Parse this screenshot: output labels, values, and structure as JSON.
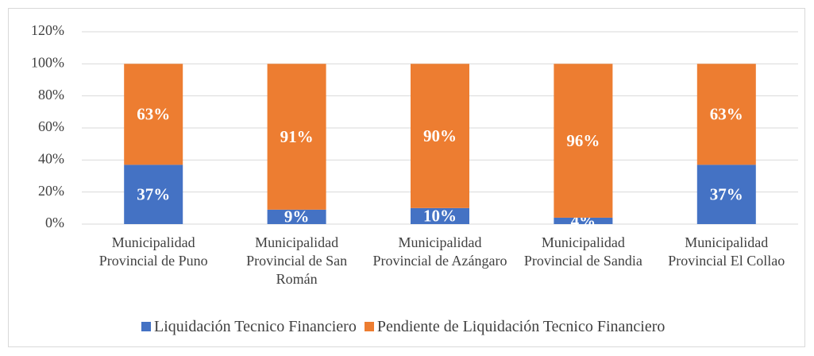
{
  "chart_data": {
    "type": "stacked_bar",
    "categories": [
      "Municipalidad Provincial de Puno",
      "Municipalidad Provincial de San Román",
      "Municipalidad Provincial de Azángaro",
      "Municipalidad Provincial de Sandia",
      "Municipalidad Provincial El Collao"
    ],
    "series": [
      {
        "name": "Liquidación Tecnico Financiero",
        "color": "#4472c4",
        "values": [
          37,
          9,
          10,
          4,
          37
        ],
        "value_labels": [
          "37%",
          "9%",
          "10%",
          "4%",
          "37%"
        ]
      },
      {
        "name": "Pendiente de Liquidación Tecnico Financiero",
        "color": "#ed7d31",
        "values": [
          63,
          91,
          90,
          96,
          63
        ],
        "value_labels": [
          "63%",
          "91%",
          "90%",
          "96%",
          "63%"
        ]
      }
    ],
    "ylim": [
      0,
      120
    ],
    "yticks": [
      {
        "value": 0,
        "label": "0%"
      },
      {
        "value": 20,
        "label": "20%"
      },
      {
        "value": 40,
        "label": "40%"
      },
      {
        "value": 60,
        "label": "60%"
      },
      {
        "value": 80,
        "label": "80%"
      },
      {
        "value": 100,
        "label": "100%"
      },
      {
        "value": 120,
        "label": "120%"
      }
    ],
    "grid": true,
    "legend": "bottom"
  }
}
